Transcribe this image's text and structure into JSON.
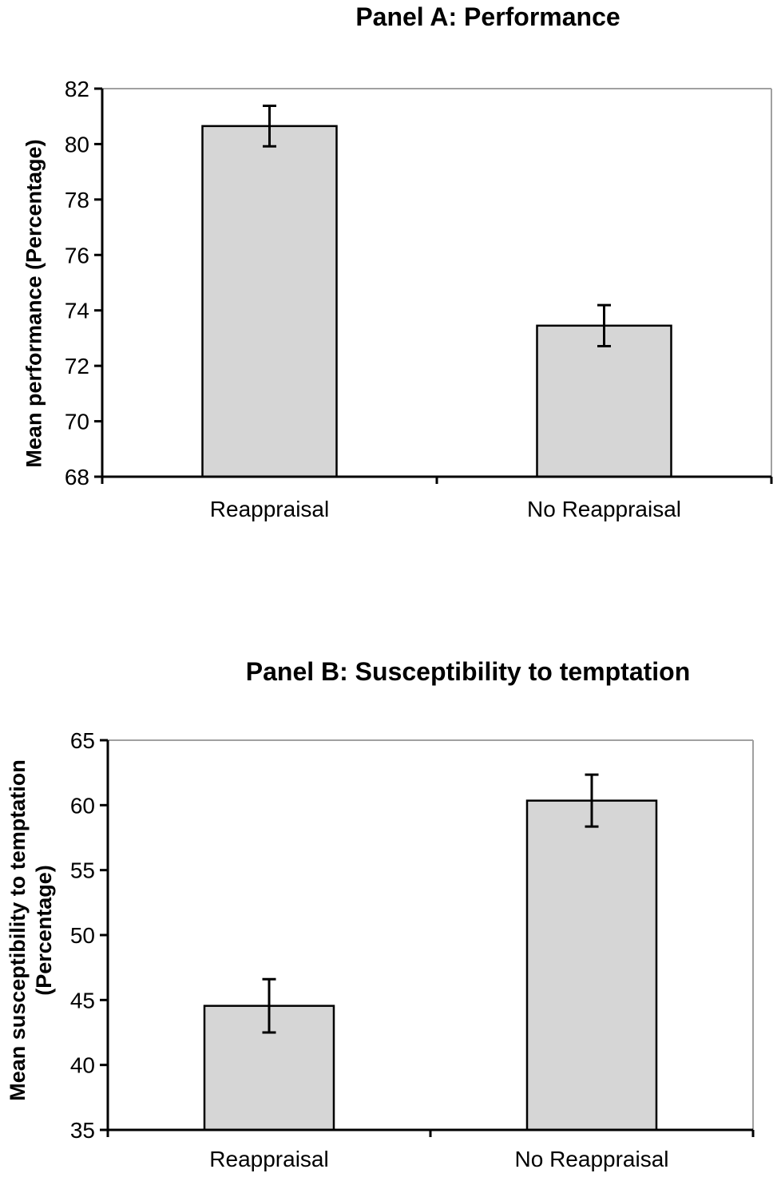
{
  "figure": {
    "background": "#ffffff",
    "axis_color": "#000000",
    "frame_color": "#a0a0a0"
  },
  "chart_data": [
    {
      "type": "bar",
      "panel": "A",
      "title": "Panel A: Performance",
      "ylabel": "Mean performance (Percentage)",
      "ylabel_lines": [
        "Mean performance (Percentage)"
      ],
      "xlabel": "",
      "categories": [
        "Reappraisal",
        "No Reappraisal"
      ],
      "values": [
        80.65,
        73.45
      ],
      "error_bars": [
        0.73,
        0.74
      ],
      "ylim": [
        68,
        82
      ],
      "ytick_step": 2,
      "ytick_labels": [
        "68",
        "70",
        "72",
        "74",
        "76",
        "78",
        "80",
        "82"
      ],
      "grid": false,
      "legend": "none",
      "bar_fill": "#d6d6d6",
      "bar_stroke": "#000000",
      "frame_color": "#a0a0a0"
    },
    {
      "type": "bar",
      "panel": "B",
      "title": "Panel B: Susceptibility to temptation",
      "ylabel": "Mean susceptibility to temptation (Percentage)",
      "ylabel_lines": [
        "Mean susceptibility to temptation",
        "(Percentage)"
      ],
      "xlabel": "",
      "categories": [
        "Reappraisal",
        "No Reappraisal"
      ],
      "values": [
        44.55,
        60.35
      ],
      "error_bars": [
        2.05,
        2.0
      ],
      "ylim": [
        35,
        65
      ],
      "ytick_step": 5,
      "ytick_labels": [
        "35",
        "40",
        "45",
        "50",
        "55",
        "60",
        "65"
      ],
      "grid": false,
      "legend": "none",
      "bar_fill": "#d6d6d6",
      "bar_stroke": "#000000",
      "frame_color": "#a0a0a0"
    }
  ]
}
